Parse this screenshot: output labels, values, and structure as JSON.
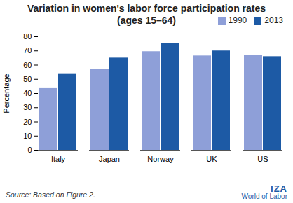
{
  "chart_data": {
    "type": "bar",
    "title": "Variation in women's labor force participation rates (ages 15–64)",
    "categories": [
      "Italy",
      "Japan",
      "Norway",
      "UK",
      "US"
    ],
    "series": [
      {
        "name": "1990",
        "color": "#8e9fd8",
        "values": [
          43.5,
          57,
          69.5,
          66.5,
          67
        ]
      },
      {
        "name": "2013",
        "color": "#1d5aa5",
        "values": [
          53.5,
          65,
          75.5,
          70,
          66
        ]
      }
    ],
    "ylabel": "Percentage",
    "ylim": [
      0,
      80
    ],
    "yticks": [
      0,
      10,
      20,
      30,
      40,
      50,
      60,
      70,
      80
    ],
    "grid": false,
    "legend": "top-right",
    "caption": "Source: Based on Figure 2.",
    "annotations": [
      "IZA",
      "World of Labor"
    ]
  }
}
